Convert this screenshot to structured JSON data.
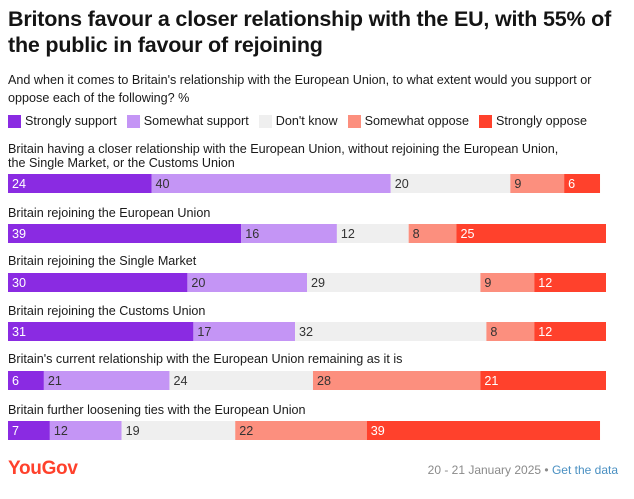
{
  "title": "Britons favour a closer relationship with the EU, with 55% of the public in favour of rejoining",
  "subtitle": "And when it comes to Britain's relationship with the European Union, to what extent would you support or oppose each of the following? %",
  "footer": {
    "logo": "YouGov",
    "date": "20 - 21 January 2025",
    "separator": "•",
    "link": "Get the data"
  },
  "colors": {
    "strongly_support": "#8a2be2",
    "somewhat_support": "#c495f5",
    "dont_know": "#efefef",
    "somewhat_oppose": "#fc8f7e",
    "strongly_oppose": "#ff412c",
    "logo": "#ff412c"
  },
  "chart_data": {
    "type": "bar",
    "orientation": "horizontal",
    "stacked": true,
    "xlim": [
      0,
      100
    ],
    "legend_position": "top",
    "categories": [
      "Britain having a closer relationship with the European Union, without rejoining the European Union, the Single Market, or the Customs Union",
      "Britain rejoining the European Union",
      "Britain rejoining the Single Market",
      "Britain rejoining the Customs Union",
      "Britain's current relationship with the European Union remaining as it is",
      "Britain further loosening ties with the European Union"
    ],
    "series": [
      {
        "name": "Strongly support",
        "key": "strongly_support",
        "values": [
          24,
          39,
          30,
          31,
          6,
          7
        ]
      },
      {
        "name": "Somewhat support",
        "key": "somewhat_support",
        "values": [
          40,
          16,
          20,
          17,
          21,
          12
        ]
      },
      {
        "name": "Don't know",
        "key": "dont_know",
        "values": [
          20,
          12,
          29,
          32,
          24,
          19
        ]
      },
      {
        "name": "Somewhat oppose",
        "key": "somewhat_oppose",
        "values": [
          9,
          8,
          9,
          8,
          28,
          22
        ]
      },
      {
        "name": "Strongly oppose",
        "key": "strongly_oppose",
        "values": [
          6,
          25,
          12,
          12,
          21,
          39
        ]
      }
    ]
  }
}
